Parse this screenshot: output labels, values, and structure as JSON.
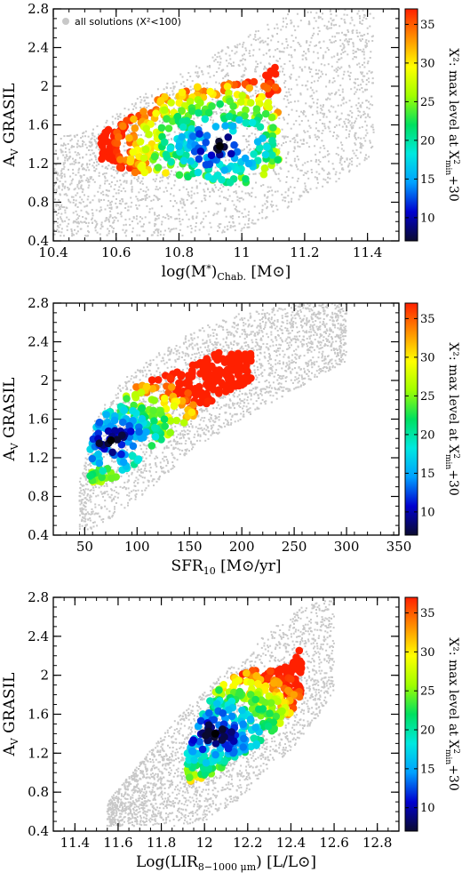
{
  "chart_data": [
    {
      "type": "scatter",
      "xlabel": "log(M*)Chab. [M⊙]",
      "xlabel_parts": {
        "main": "log(M",
        "sub1": "*",
        "mid": ")",
        "sub2": "Chab.",
        "unit": " [M⊙]"
      },
      "ylabel": "AV GRASIL",
      "xlim": [
        10.4,
        11.5
      ],
      "ylim": [
        0.4,
        2.8
      ],
      "xticks": [
        "10.4",
        "10.6",
        "10.8",
        "11",
        "11.2",
        "11.4"
      ],
      "xtick_values": [
        10.4,
        10.6,
        10.8,
        11.0,
        11.2,
        11.4
      ],
      "yticks": [
        "0.4",
        "0.8",
        "1.2",
        "1.6",
        "2",
        "2.4",
        "2.8"
      ],
      "ytick_values": [
        0.4,
        0.8,
        1.2,
        1.6,
        2.0,
        2.4,
        2.8
      ],
      "legend": "all solutions (X²<100)",
      "legend_position": "top-left",
      "background_cloud": [
        {
          "x": 10.4,
          "y_low": 0.45,
          "y_high": 1.45
        },
        {
          "x": 10.55,
          "y_low": 0.45,
          "y_high": 1.6
        },
        {
          "x": 10.7,
          "y_low": 0.45,
          "y_high": 1.95
        },
        {
          "x": 10.85,
          "y_low": 0.45,
          "y_high": 2.2
        },
        {
          "x": 11.0,
          "y_low": 0.5,
          "y_high": 2.5
        },
        {
          "x": 11.15,
          "y_low": 0.75,
          "y_high": 2.75
        },
        {
          "x": 11.3,
          "y_low": 1.0,
          "y_high": 2.8
        },
        {
          "x": 11.42,
          "y_low": 1.3,
          "y_high": 2.8
        }
      ],
      "colored_cloud": [
        {
          "x": 10.55,
          "y_low": 1.25,
          "y_high": 1.5
        },
        {
          "x": 10.65,
          "y_low": 1.1,
          "y_high": 1.7
        },
        {
          "x": 10.75,
          "y_low": 1.1,
          "y_high": 1.9
        },
        {
          "x": 10.85,
          "y_low": 1.05,
          "y_high": 2.0
        },
        {
          "x": 10.95,
          "y_low": 1.0,
          "y_high": 2.05
        },
        {
          "x": 11.05,
          "y_low": 1.0,
          "y_high": 2.05
        },
        {
          "x": 11.12,
          "y_low": 1.2,
          "y_high": 2.25
        }
      ],
      "best_fit": {
        "x": 10.93,
        "y": 1.38
      }
    },
    {
      "type": "scatter",
      "xlabel": "SFR10 [M⊙/yr]",
      "xlabel_parts": {
        "main": "SFR",
        "sub": "10",
        "unit": " [M⊙/yr]"
      },
      "ylabel": "AV GRASIL",
      "xlim": [
        20,
        350
      ],
      "ylim": [
        0.4,
        2.8
      ],
      "xticks": [
        "50",
        "100",
        "150",
        "200",
        "250",
        "300",
        "350"
      ],
      "xtick_values": [
        50,
        100,
        150,
        200,
        250,
        300,
        350
      ],
      "yticks": [
        "0.4",
        "0.8",
        "1.2",
        "1.6",
        "2",
        "2.4",
        "2.8"
      ],
      "ytick_values": [
        0.4,
        0.8,
        1.2,
        1.6,
        2.0,
        2.4,
        2.8
      ],
      "background_cloud": [
        {
          "x": 45,
          "y_low": 0.45,
          "y_high": 0.95
        },
        {
          "x": 60,
          "y_low": 0.45,
          "y_high": 1.6
        },
        {
          "x": 80,
          "y_low": 0.6,
          "y_high": 1.95
        },
        {
          "x": 110,
          "y_low": 0.85,
          "y_high": 2.2
        },
        {
          "x": 150,
          "y_low": 1.25,
          "y_high": 2.5
        },
        {
          "x": 200,
          "y_low": 1.6,
          "y_high": 2.7
        },
        {
          "x": 250,
          "y_low": 1.9,
          "y_high": 2.8
        },
        {
          "x": 300,
          "y_low": 2.2,
          "y_high": 2.8
        }
      ],
      "colored_cloud": [
        {
          "x": 55,
          "y_low": 0.95,
          "y_high": 1.4
        },
        {
          "x": 65,
          "y_low": 0.95,
          "y_high": 1.6
        },
        {
          "x": 80,
          "y_low": 1.0,
          "y_high": 1.8
        },
        {
          "x": 100,
          "y_low": 1.15,
          "y_high": 1.95
        },
        {
          "x": 125,
          "y_low": 1.4,
          "y_high": 2.05
        },
        {
          "x": 150,
          "y_low": 1.6,
          "y_high": 2.15
        },
        {
          "x": 180,
          "y_low": 1.85,
          "y_high": 2.3
        },
        {
          "x": 210,
          "y_low": 2.0,
          "y_high": 2.3
        }
      ],
      "best_fit": {
        "x": 75,
        "y": 1.38
      }
    },
    {
      "type": "scatter",
      "xlabel": "Log(LIR8−1000 μm) [L/L⊙]",
      "xlabel_parts": {
        "main": "Log(LIR",
        "sub": "8−1000 μm",
        "unit": ") [L/L⊙]"
      },
      "ylabel": "AV GRASIL",
      "xlim": [
        11.3,
        12.9
      ],
      "ylim": [
        0.4,
        2.8
      ],
      "xticks": [
        "11.4",
        "11.6",
        "11.8",
        "12",
        "12.2",
        "12.4",
        "12.6",
        "12.8"
      ],
      "xtick_values": [
        11.4,
        11.6,
        11.8,
        12.0,
        12.2,
        12.4,
        12.6,
        12.8
      ],
      "yticks": [
        "0.4",
        "0.8",
        "1.2",
        "1.6",
        "2",
        "2.4",
        "2.8"
      ],
      "ytick_values": [
        0.4,
        0.8,
        1.2,
        1.6,
        2.0,
        2.4,
        2.8
      ],
      "background_cloud": [
        {
          "x": 11.55,
          "y_low": 0.45,
          "y_high": 0.7
        },
        {
          "x": 11.7,
          "y_low": 0.45,
          "y_high": 1.1
        },
        {
          "x": 11.85,
          "y_low": 0.45,
          "y_high": 1.5
        },
        {
          "x": 12.0,
          "y_low": 0.5,
          "y_high": 1.85
        },
        {
          "x": 12.15,
          "y_low": 0.7,
          "y_high": 2.15
        },
        {
          "x": 12.3,
          "y_low": 1.0,
          "y_high": 2.45
        },
        {
          "x": 12.45,
          "y_low": 1.35,
          "y_high": 2.7
        },
        {
          "x": 12.6,
          "y_low": 1.8,
          "y_high": 2.8
        }
      ],
      "colored_cloud": [
        {
          "x": 11.92,
          "y_low": 0.9,
          "y_high": 1.2
        },
        {
          "x": 12.0,
          "y_low": 0.95,
          "y_high": 1.7
        },
        {
          "x": 12.1,
          "y_low": 1.05,
          "y_high": 1.95
        },
        {
          "x": 12.2,
          "y_low": 1.2,
          "y_high": 2.05
        },
        {
          "x": 12.3,
          "y_low": 1.4,
          "y_high": 2.05
        },
        {
          "x": 12.4,
          "y_low": 1.6,
          "y_high": 2.1
        },
        {
          "x": 12.45,
          "y_low": 1.75,
          "y_high": 2.3
        }
      ],
      "best_fit": {
        "x": 12.05,
        "y": 1.4
      }
    }
  ],
  "colorbar": {
    "title_parts": {
      "a": "X²: max level at X",
      "sup": "2",
      "sub": "min",
      "b": "+30"
    },
    "range": [
      7,
      37
    ],
    "ticks": [
      "10",
      "15",
      "20",
      "25",
      "30",
      "35"
    ],
    "tick_values": [
      10,
      15,
      20,
      25,
      30,
      35
    ],
    "colormap": [
      "#0a0a30",
      "#0000d0",
      "#00a0ff",
      "#00e8e0",
      "#00e060",
      "#a0ff00",
      "#ffff00",
      "#ff9000",
      "#ff2000"
    ]
  }
}
